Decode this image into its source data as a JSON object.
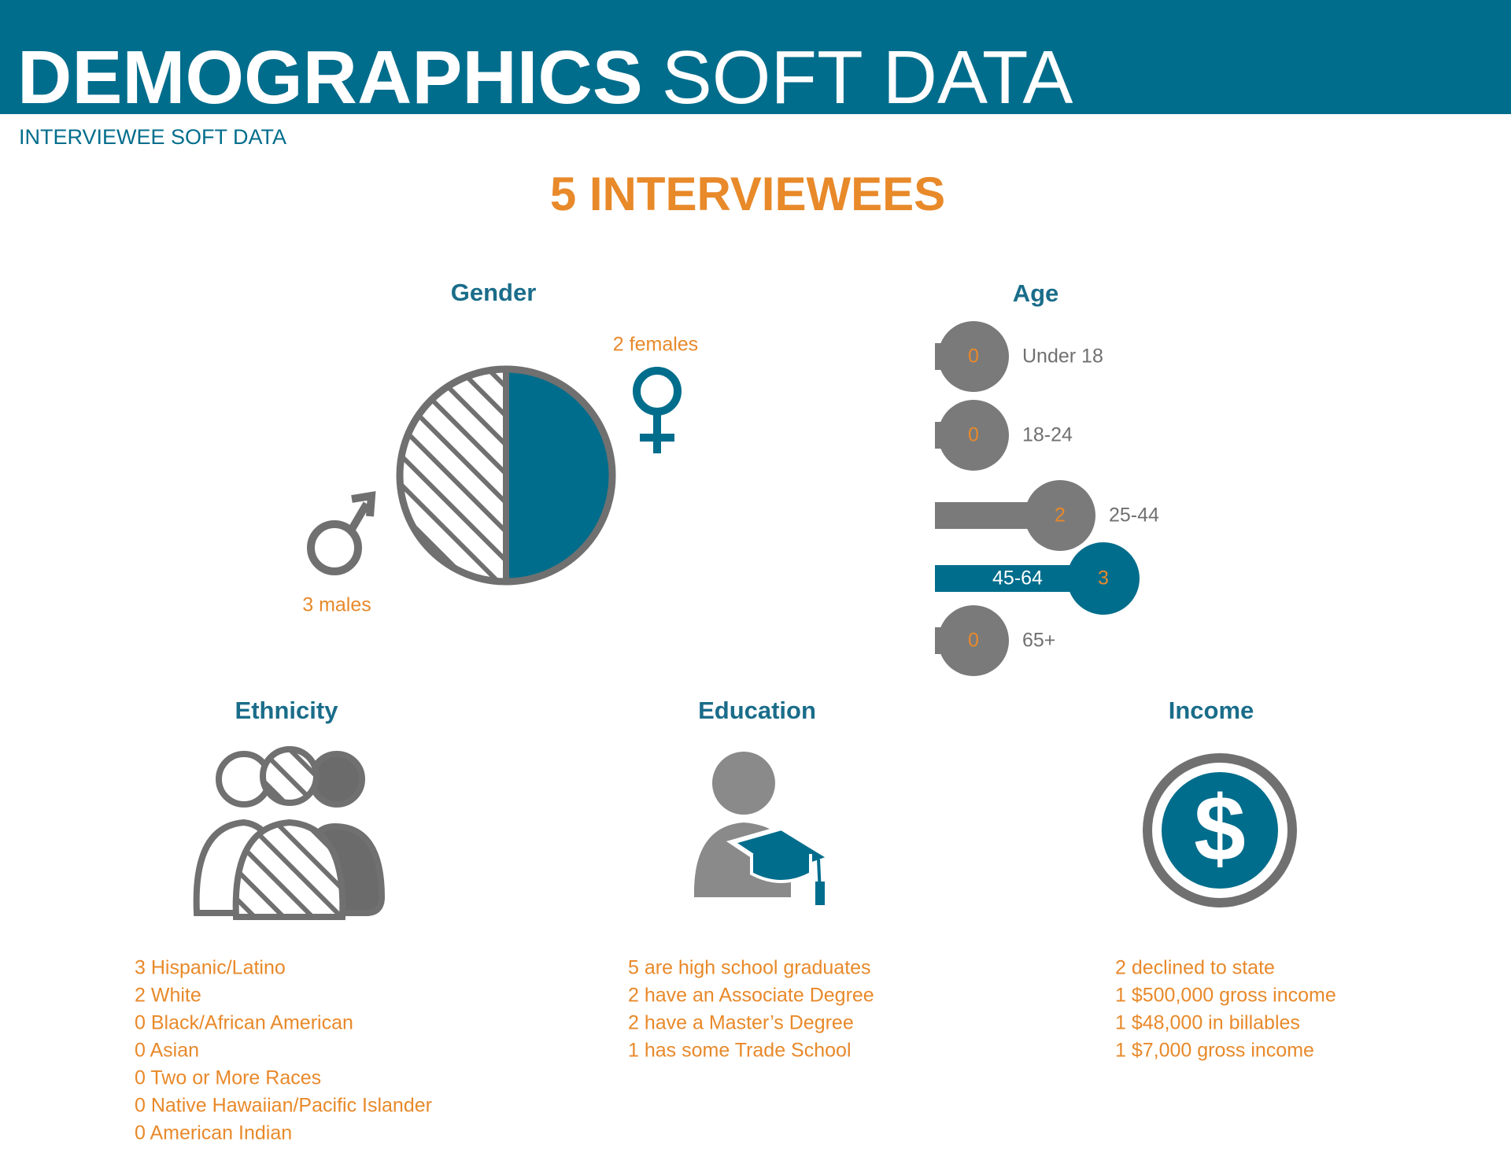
{
  "header": {
    "title_bold": "DEMOGRAPHICS",
    "title_light": "SOFT DATA",
    "subtitle": "INTERVIEWEE SOFT DATA"
  },
  "headline": "5 INTERVIEWEES",
  "gender": {
    "title": "Gender",
    "females": "2 females",
    "males": "3 males"
  },
  "age": {
    "title": "Age",
    "groups": [
      {
        "label": "Under 18",
        "count": 0
      },
      {
        "label": "18-24",
        "count": 0
      },
      {
        "label": "25-44",
        "count": 2
      },
      {
        "label": "45-64",
        "count": 3
      },
      {
        "label": "65+",
        "count": 0
      }
    ]
  },
  "ethnicity": {
    "title": "Ethnicity",
    "items": [
      "3 Hispanic/Latino",
      "2 White",
      "0 Black/African American",
      "0 Asian",
      "0 Two or More Races",
      "0 Native Hawaiian/Pacific Islander",
      "0 American Indian"
    ]
  },
  "education": {
    "title": "Education",
    "items": [
      "5 are high school graduates",
      "2 have an Associate Degree",
      "2 have a Master’s Degree",
      "1 has some Trade School"
    ]
  },
  "income": {
    "title": "Income",
    "items": [
      "2 declined to state",
      "1 $500,000 gross income",
      "1 $48,000 in billables",
      "1 $7,000 gross income"
    ]
  }
}
